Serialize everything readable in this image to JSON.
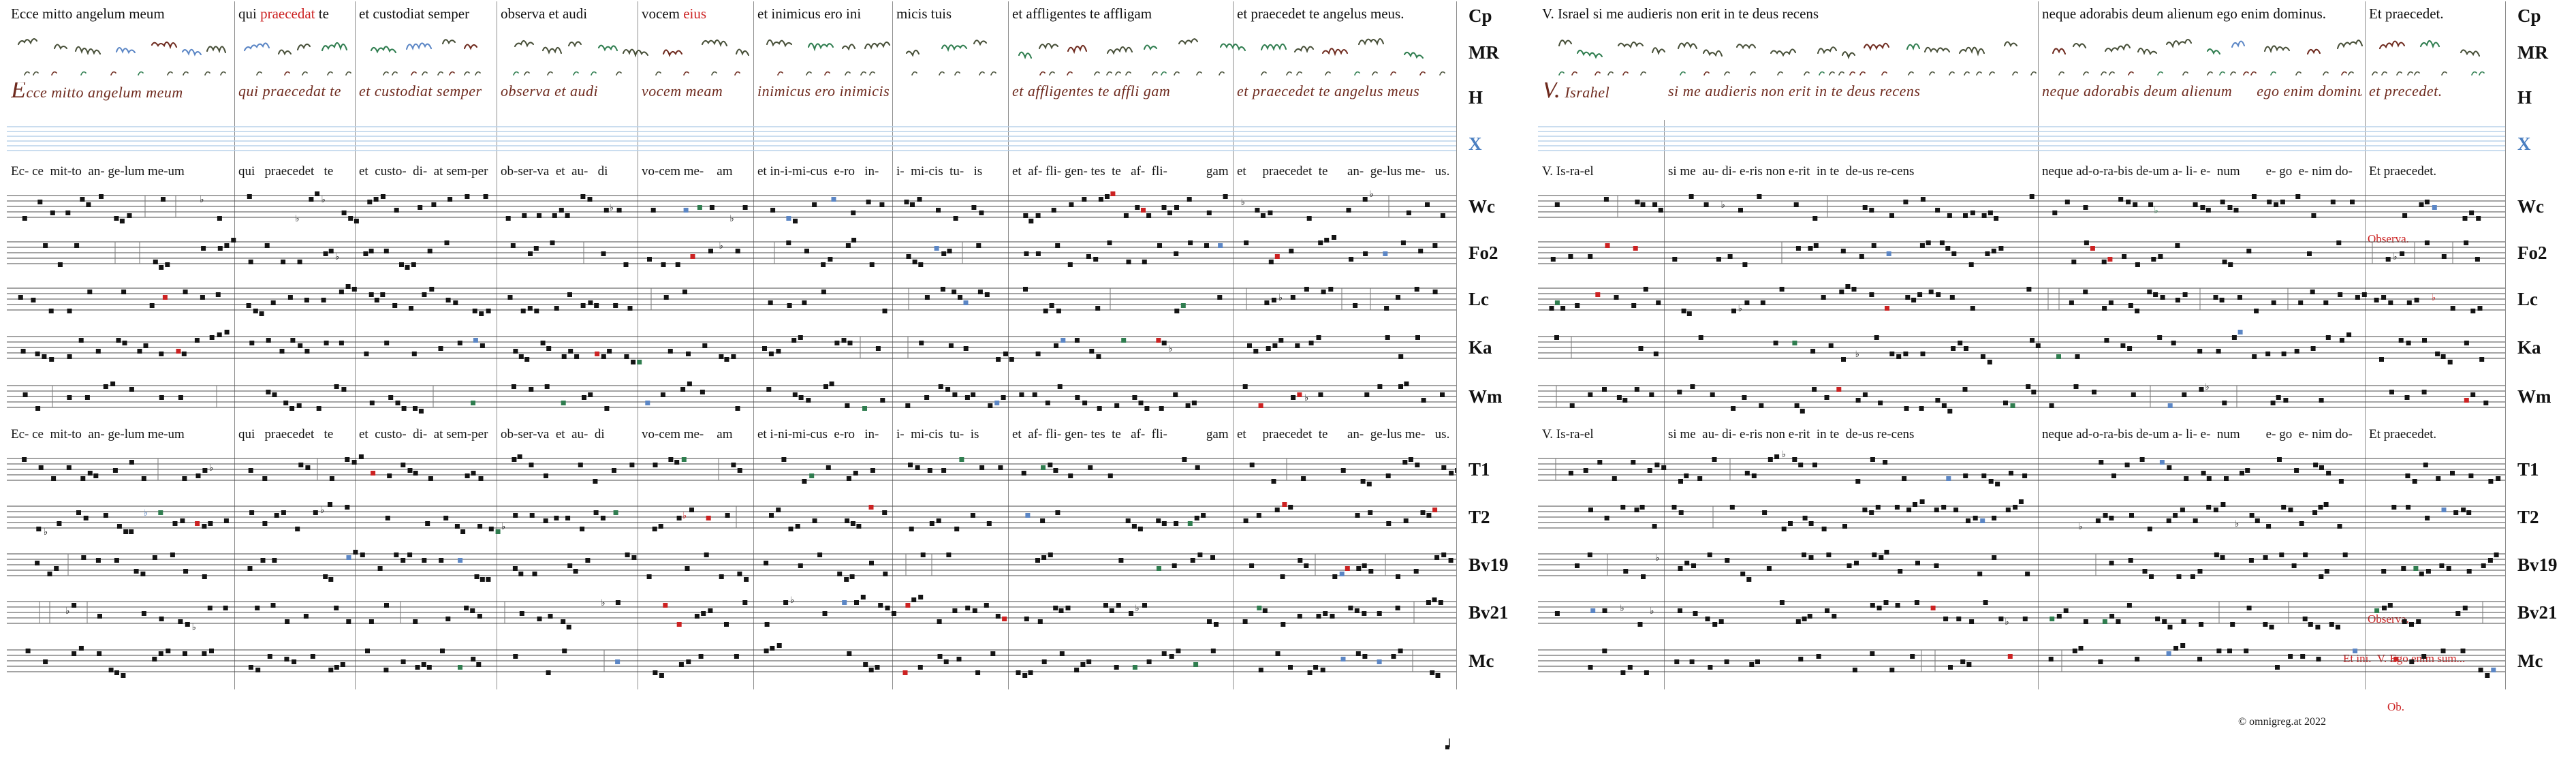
{
  "colors": {
    "accent_red": "#cc2222",
    "x_blue": "#4a7fc1",
    "staff_line": "#4a4a4a",
    "blue_staff_line": "#b9d2ea",
    "h_ink": "#6e2a1e",
    "neume_ink": "#474f38",
    "neume_green": "#2f7d4f",
    "neume_blue": "#5b86c5",
    "note_ink": "#141414"
  },
  "row_labels": {
    "cp": "Cp",
    "mr": "MR",
    "h": "H",
    "x": "X",
    "wc": "Wc",
    "fo2": "Fo2",
    "lc": "Lc",
    "ka": "Ka",
    "wm": "Wm",
    "t1": "T1",
    "t2": "T2",
    "bv19": "Bv19",
    "bv21": "Bv21",
    "mc": "Mc"
  },
  "left": {
    "cp": [
      {
        "text": "Ecce mitto angelum meum"
      },
      {
        "pre": "qui ",
        "red": "praecedat",
        "post": " te"
      },
      {
        "text": "et custodiat semper"
      },
      {
        "text": "observa et audi"
      },
      {
        "pre": "vocem ",
        "red": "eius",
        "post": ""
      },
      {
        "text": "et inimicus ero ini"
      },
      {
        "text": "micis tuis"
      },
      {
        "text": "et affligentes te affligam"
      },
      {
        "text": "et praecedet te angelus meus."
      }
    ],
    "h": [
      "Ecce mitto angelum meum",
      "qui praecedat te",
      "et custodiat semper",
      "observa et audi",
      "vocem meam",
      "inimicus ero inimicis tuis",
      "",
      "et affligentes te affli gam",
      "et praecedet te angelus meus"
    ],
    "x_lyrics": [
      "Ec- ce  mit-to  an- ge-lum me-um",
      "qui   praecedet   te",
      "et  custo-  di-  at sem-per",
      "ob-ser-va  et  au-   di",
      "vo-cem me-    am",
      "et in-i-mi-cus  e-ro   in-",
      "i-  mi-cis  tu-   is",
      "et  af- fli- gen- tes  te   af-  fli-            gam",
      "et     praecedet  te      an-  ge-lus me-   us."
    ],
    "mid_lyrics": [
      "Ec- ce  mit-to  an- ge-lum me-um",
      "qui   praecedet   te",
      "et  custo-  di-  at sem-per",
      "ob-ser-va  et  au-  di",
      "vo-cem me-    am",
      "et i-ni-mi-cus  e-ro   in-",
      "i-  mi-cis  tu-  is",
      "et  af- fli- gen- tes  te   af-  fli-            gam",
      "et     praecedet  te      an-  ge-lus me-   us."
    ]
  },
  "right": {
    "cp": [
      {
        "text": "V. Israel si me audieris non erit in te deus recens"
      },
      {
        "text": "neque adorabis deum alienum ego enim dominus."
      },
      {
        "text": "Et praecedet."
      }
    ],
    "h": [
      "V. Israhel",
      "si me audieris non erit in te deus recens",
      "neque adorabis deum alienum      ego enim dominus.",
      "et precedet."
    ],
    "x_lyrics": [
      "V. Is-ra-el",
      "si me  au- di- e-ris non e-rit  in te  de-us re-cens",
      "neque ad-o-ra-bis de-um a- li- e-  num        e- go  e- nim do-     mi-     nus.",
      "Et praecedet."
    ],
    "mid_lyrics": [
      "V. Is-ra-el",
      "si me  au- di- e-ris non e-rit  in te  de-us re-cens",
      "neque ad-o-ra-bis de-um a- li- e-  num        e- go  e- nim do-    mi-    nus.",
      "Et praecedet."
    ],
    "annotations": {
      "observa_top": "Observa.",
      "observa_bottom": "Observa.",
      "cue_line": "Et ini.  V. Ego enim sum...",
      "ob": "Ob."
    }
  },
  "footer": {
    "copyright": "© omnigreg.at  2022"
  }
}
